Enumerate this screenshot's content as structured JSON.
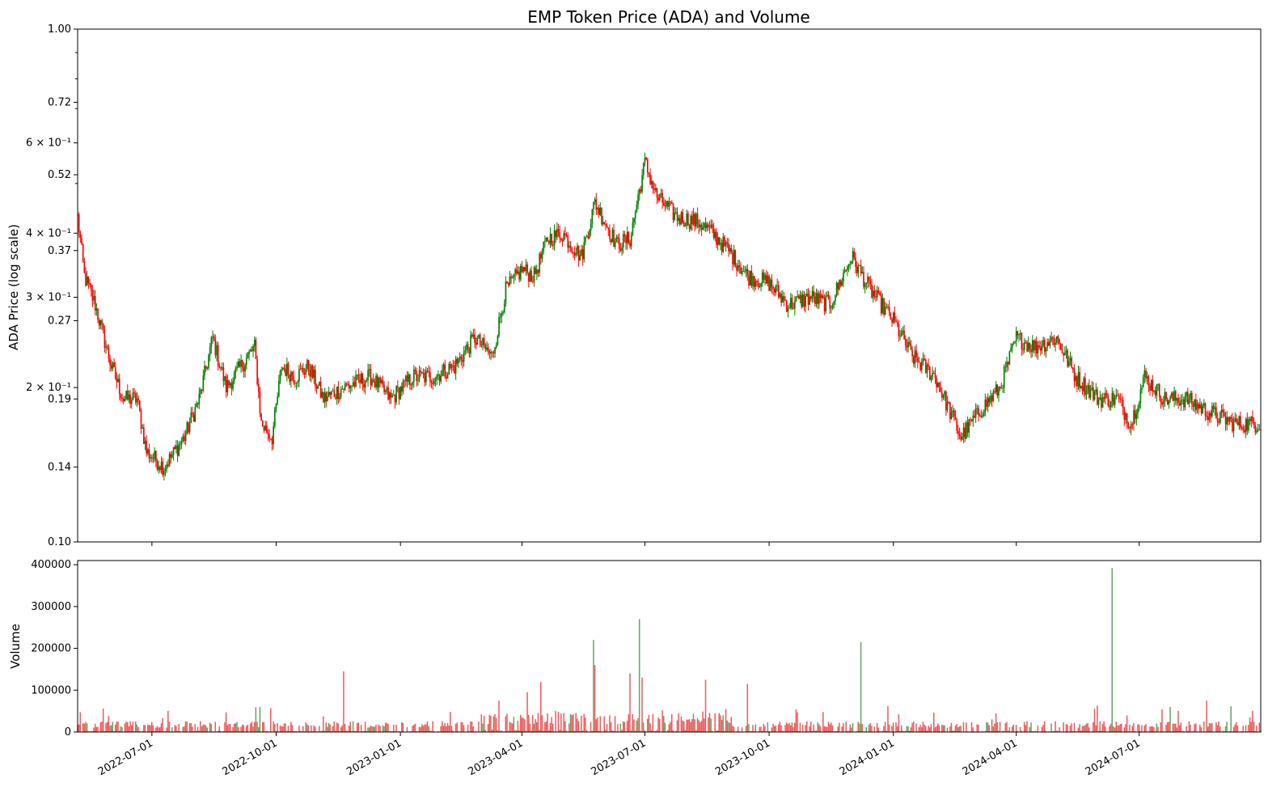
{
  "chart_data": [
    {
      "type": "candlestick",
      "title": "EMP Token Price (ADA) and Volume",
      "ylabel": "ADA Price (log scale)",
      "xlabel": "",
      "yscale": "log",
      "ylim": [
        0.1,
        1.0
      ],
      "grid": false,
      "up_color": "#008000",
      "down_color": "#ff0000",
      "y_tick_labels": [
        {
          "value": 1.0,
          "label": "1.00"
        },
        {
          "value": 0.72,
          "label": "0.72"
        },
        {
          "value": 0.6,
          "label": "6 × 10⁻¹"
        },
        {
          "value": 0.52,
          "label": "0.52"
        },
        {
          "value": 0.4,
          "label": "4 × 10⁻¹"
        },
        {
          "value": 0.37,
          "label": "0.37"
        },
        {
          "value": 0.3,
          "label": "3 × 10⁻¹"
        },
        {
          "value": 0.27,
          "label": "0.27"
        },
        {
          "value": 0.2,
          "label": "2 × 10⁻¹"
        },
        {
          "value": 0.19,
          "label": "0.19"
        },
        {
          "value": 0.14,
          "label": "0.14"
        },
        {
          "value": 0.1,
          "label": "0.10"
        }
      ],
      "x_range": [
        "2022-05-07",
        "2024-09-29"
      ],
      "x_tick_labels": [
        "2022-07-01",
        "2022-10-01",
        "2023-01-01",
        "2023-04-01",
        "2023-07-01",
        "2023-10-01",
        "2024-01-01",
        "2024-04-01",
        "2024-07-01"
      ],
      "close_keypoints": [
        [
          "2022-05-07",
          0.43
        ],
        [
          "2022-05-12",
          0.33
        ],
        [
          "2022-05-20",
          0.29
        ],
        [
          "2022-06-01",
          0.22
        ],
        [
          "2022-06-10",
          0.19
        ],
        [
          "2022-06-20",
          0.19
        ],
        [
          "2022-06-27",
          0.15
        ],
        [
          "2022-07-10",
          0.14
        ],
        [
          "2022-07-25",
          0.16
        ],
        [
          "2022-08-05",
          0.19
        ],
        [
          "2022-08-15",
          0.25
        ],
        [
          "2022-08-25",
          0.2
        ],
        [
          "2022-09-05",
          0.22
        ],
        [
          "2022-09-15",
          0.24
        ],
        [
          "2022-09-20",
          0.17
        ],
        [
          "2022-09-28",
          0.16
        ],
        [
          "2022-10-05",
          0.22
        ],
        [
          "2022-10-15",
          0.21
        ],
        [
          "2022-10-25",
          0.22
        ],
        [
          "2022-11-05",
          0.19
        ],
        [
          "2022-11-20",
          0.2
        ],
        [
          "2022-12-10",
          0.21
        ],
        [
          "2022-12-25",
          0.19
        ],
        [
          "2023-01-10",
          0.21
        ],
        [
          "2023-01-25",
          0.21
        ],
        [
          "2023-02-10",
          0.22
        ],
        [
          "2023-02-25",
          0.25
        ],
        [
          "2023-03-10",
          0.23
        ],
        [
          "2023-03-20",
          0.31
        ],
        [
          "2023-04-01",
          0.34
        ],
        [
          "2023-04-10",
          0.33
        ],
        [
          "2023-04-20",
          0.39
        ],
        [
          "2023-05-01",
          0.4
        ],
        [
          "2023-05-15",
          0.36
        ],
        [
          "2023-05-25",
          0.46
        ],
        [
          "2023-06-10",
          0.38
        ],
        [
          "2023-06-20",
          0.39
        ],
        [
          "2023-07-01",
          0.55
        ],
        [
          "2023-07-10",
          0.47
        ],
        [
          "2023-07-25",
          0.43
        ],
        [
          "2023-08-10",
          0.42
        ],
        [
          "2023-08-20",
          0.4
        ],
        [
          "2023-09-01",
          0.37
        ],
        [
          "2023-09-15",
          0.33
        ],
        [
          "2023-10-01",
          0.32
        ],
        [
          "2023-10-15",
          0.29
        ],
        [
          "2023-11-01",
          0.3
        ],
        [
          "2023-11-15",
          0.29
        ],
        [
          "2023-12-01",
          0.36
        ],
        [
          "2023-12-15",
          0.31
        ],
        [
          "2024-01-01",
          0.27
        ],
        [
          "2024-01-15",
          0.23
        ],
        [
          "2024-02-01",
          0.21
        ],
        [
          "2024-02-20",
          0.16
        ],
        [
          "2024-03-05",
          0.18
        ],
        [
          "2024-03-20",
          0.2
        ],
        [
          "2024-04-01",
          0.25
        ],
        [
          "2024-04-15",
          0.24
        ],
        [
          "2024-05-01",
          0.25
        ],
        [
          "2024-05-15",
          0.21
        ],
        [
          "2024-06-01",
          0.19
        ],
        [
          "2024-06-15",
          0.19
        ],
        [
          "2024-06-25",
          0.17
        ],
        [
          "2024-07-05",
          0.21
        ],
        [
          "2024-07-20",
          0.19
        ],
        [
          "2024-08-05",
          0.19
        ],
        [
          "2024-08-20",
          0.18
        ],
        [
          "2024-09-10",
          0.17
        ],
        [
          "2024-09-29",
          0.17
        ]
      ]
    },
    {
      "type": "bar",
      "ylabel": "Volume",
      "xlabel": "",
      "ylim": [
        0,
        410000
      ],
      "grid": false,
      "bar_color_down": "#f05050",
      "bar_color_up": "#5aa05a",
      "y_tick_labels": [
        "0",
        "100000",
        "200000",
        "300000",
        "400000"
      ],
      "x_tick_labels": [
        "2022-07-01",
        "2022-10-01",
        "2023-01-01",
        "2023-04-01",
        "2023-07-01",
        "2023-10-01",
        "2024-01-01",
        "2024-04-01",
        "2024-07-01"
      ],
      "spikes": [
        [
          "2022-11-20",
          145000,
          "down"
        ],
        [
          "2023-03-15",
          75000,
          "down"
        ],
        [
          "2023-04-05",
          95000,
          "down"
        ],
        [
          "2023-04-15",
          120000,
          "down"
        ],
        [
          "2023-05-24",
          220000,
          "up"
        ],
        [
          "2023-05-25",
          160000,
          "down"
        ],
        [
          "2023-06-20",
          140000,
          "down"
        ],
        [
          "2023-06-27",
          270000,
          "up"
        ],
        [
          "2023-06-29",
          130000,
          "down"
        ],
        [
          "2023-08-15",
          125000,
          "down"
        ],
        [
          "2023-09-15",
          115000,
          "down"
        ],
        [
          "2023-12-08",
          215000,
          "up"
        ],
        [
          "2024-06-11",
          392000,
          "up"
        ],
        [
          "2024-08-20",
          75000,
          "down"
        ]
      ]
    }
  ]
}
